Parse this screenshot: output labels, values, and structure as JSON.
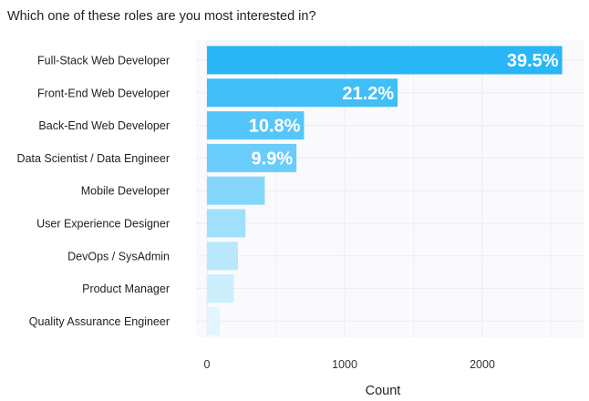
{
  "chart_data": {
    "type": "bar",
    "orientation": "horizontal",
    "title": "Which one of these roles are you most interested in?",
    "xlabel": "Count",
    "ylabel": "",
    "xlim": [
      0,
      2700
    ],
    "xticks": [
      0,
      1000,
      2000
    ],
    "grid": true,
    "categories": [
      "Full-Stack Web Developer",
      "Front-End Web Developer",
      "Back-End Web Developer",
      "Data Scientist / Data Engineer",
      "Mobile Developer",
      "User Experience Designer",
      "DevOps / SysAdmin",
      "Product Manager",
      "Quality Assurance Engineer"
    ],
    "values": [
      2580,
      1385,
      705,
      650,
      420,
      280,
      225,
      195,
      95
    ],
    "data_labels": [
      "39.5%",
      "21.2%",
      "10.8%",
      "9.9%",
      "",
      "",
      "",
      "",
      ""
    ],
    "bar_colors": [
      "#29b6f6",
      "#40bef7",
      "#55c6f9",
      "#6accfa",
      "#85d6fb",
      "#a1e0fc",
      "#b9e8fc",
      "#cdeffd",
      "#e2f5fe"
    ],
    "colors": {
      "panel_background": "#fafafd",
      "grid_line": "#ebebf2",
      "text": "#222222"
    }
  }
}
